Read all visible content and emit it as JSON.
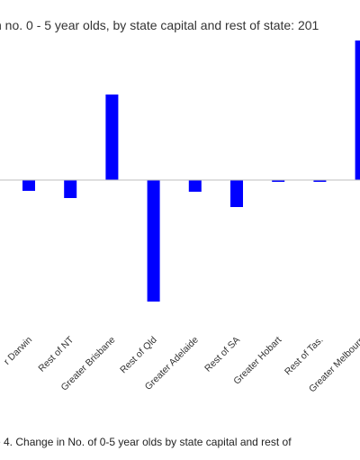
{
  "chart_data": {
    "type": "bar",
    "title": "n no. 0 - 5 year olds, by state capital and rest of state: 201",
    "caption": "e 4. Change in No. of 0-5 year olds by state capital and rest of",
    "categories": [
      "r Darwin",
      "Rest of NT",
      "Greater Brisbane",
      "Rest of Qld",
      "Greater Adelaide",
      "Rest of SA",
      "Greater Hobart",
      "Rest of Tas.",
      "Greater Melbourn"
    ],
    "values": [
      -12,
      -20,
      95,
      -135,
      -13,
      -30,
      -2,
      -2,
      155
    ],
    "ylim": [
      -170,
      160
    ],
    "grid": false,
    "colors": {
      "bar": "#0000ff",
      "axis": "#bfbfbf"
    }
  }
}
